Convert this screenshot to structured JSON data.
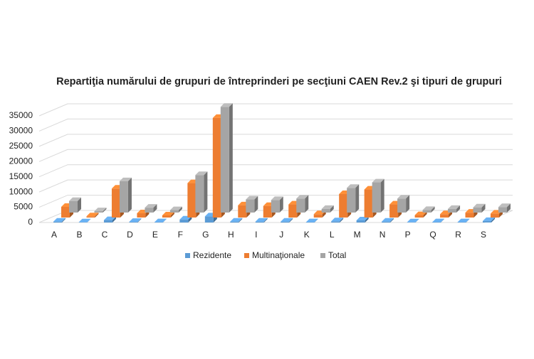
{
  "chart_data": {
    "type": "bar3d",
    "title": "Repartiţia numărului de grupuri de întreprinderi pe secţiuni CAEN Rev.2 şi tipuri de grupuri",
    "categories": [
      "A",
      "B",
      "C",
      "D",
      "E",
      "F",
      "G",
      "H",
      "I",
      "J",
      "K",
      "L",
      "M",
      "N",
      "P",
      "Q",
      "R",
      "S"
    ],
    "series": [
      {
        "name": "Rezidente",
        "color": "#5b9bd5",
        "values": [
          300,
          50,
          800,
          200,
          100,
          1000,
          2000,
          300,
          300,
          300,
          100,
          400,
          700,
          300,
          50,
          100,
          100,
          500
        ]
      },
      {
        "name": "Multinaţionale",
        "color": "#ed7d31",
        "values": [
          3500,
          400,
          9500,
          1400,
          700,
          11300,
          32700,
          4000,
          3800,
          4300,
          1100,
          7700,
          9200,
          4300,
          800,
          1100,
          1600,
          1300
        ]
      },
      {
        "name": "Total",
        "color": "#a5a5a5",
        "values": [
          3800,
          450,
          10300,
          1600,
          800,
          12300,
          34700,
          4300,
          4100,
          4600,
          1200,
          8100,
          9900,
          4600,
          850,
          1200,
          1700,
          1800
        ]
      }
    ],
    "ylim": [
      0,
      35000
    ],
    "yticks": [
      0,
      5000,
      10000,
      15000,
      20000,
      25000,
      30000,
      35000
    ],
    "grid": true
  }
}
